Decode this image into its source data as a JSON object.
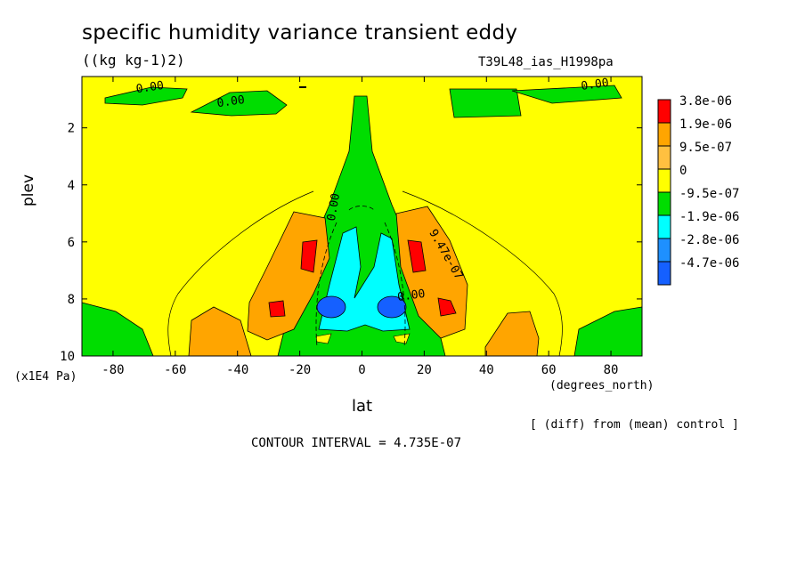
{
  "title": "specific humidity variance transient eddy",
  "units": "((kg kg-1)2)",
  "run_id": "T39L48_ias_H1998pa",
  "note": "[ (diff) from (mean) control ]",
  "contour_interval": "CONTOUR INTERVAL = 4.735E-07",
  "colors": {
    "red": "#ff0000",
    "orange": "#ffa500",
    "light_orange": "#ffc040",
    "yellow": "#ffff00",
    "green": "#00dd00",
    "cyan": "#00ffff",
    "light_blue": "#1e90ff",
    "blue": "#1560ff"
  },
  "chart_data": {
    "type": "heatmap",
    "title": "specific humidity variance transient eddy",
    "xlabel": "lat",
    "x_unit": "(degrees_north)",
    "ylabel": "plev",
    "y_unit": "(x1E4 Pa)",
    "xlim": [
      -90,
      90
    ],
    "ylim": [
      10,
      0.2
    ],
    "x_ticks": [
      -80,
      -60,
      -40,
      -20,
      0,
      20,
      40,
      60,
      80
    ],
    "x_tick_labels": [
      "-80",
      "-60",
      "-40",
      "-20",
      "0",
      "20",
      "40",
      "60",
      "80"
    ],
    "y_ticks": [
      2,
      4,
      6,
      8,
      10
    ],
    "y_tick_labels": [
      "2",
      "4",
      "6",
      "8",
      "10"
    ],
    "legend": {
      "placement": "right",
      "labels": [
        "3.8e-06",
        "1.9e-06",
        "9.5e-07",
        "0",
        "-9.5e-07",
        "-1.9e-06",
        "-2.8e-06",
        "-4.7e-06"
      ],
      "colors": [
        "#ff0000",
        "#ffa500",
        "#ffc040",
        "#ffff00",
        "#00dd00",
        "#00ffff",
        "#1e90ff",
        "#1560ff"
      ]
    },
    "contour_labels": [
      {
        "text": "0.00",
        "lat": -68,
        "plev": 0.7
      },
      {
        "text": "0.00",
        "lat": -42,
        "plev": 1.2
      },
      {
        "text": "0.00",
        "lat": 75,
        "plev": 0.6
      },
      {
        "text": "0.00",
        "lat": -8,
        "plev": 4.8
      },
      {
        "text": "9.47e-07",
        "lat": 26,
        "plev": 6.5
      },
      {
        "text": "0.00",
        "lat": 16,
        "plev": 8.0
      }
    ],
    "contour_interval": 4.735e-07,
    "regions": [
      {
        "value": "green",
        "lat_center": 0,
        "plev_range": [
          0.8,
          10
        ],
        "description_level": "near zero negative"
      },
      {
        "value": "cyan",
        "lat_center": 0,
        "plev_range": [
          5.6,
          9.8
        ]
      },
      {
        "value": "blue",
        "lat_center": -10,
        "plev_range": [
          7.8,
          8.6
        ]
      },
      {
        "value": "blue",
        "lat_center": 10,
        "plev_range": [
          7.8,
          8.6
        ]
      },
      {
        "value": "orange",
        "lat_center": -20,
        "plev_range": [
          5,
          9.5
        ]
      },
      {
        "value": "orange",
        "lat_center": 20,
        "plev_range": [
          5,
          9.5
        ]
      },
      {
        "value": "red",
        "lat_center": -17,
        "plev_range": [
          6,
          7
        ]
      },
      {
        "value": "red",
        "lat_center": 17,
        "plev_range": [
          6,
          7
        ]
      },
      {
        "value": "red",
        "lat_center": -27,
        "plev_range": [
          8,
          8.6
        ]
      },
      {
        "value": "red",
        "lat_center": 28,
        "plev_range": [
          8,
          8.6
        ]
      }
    ]
  }
}
